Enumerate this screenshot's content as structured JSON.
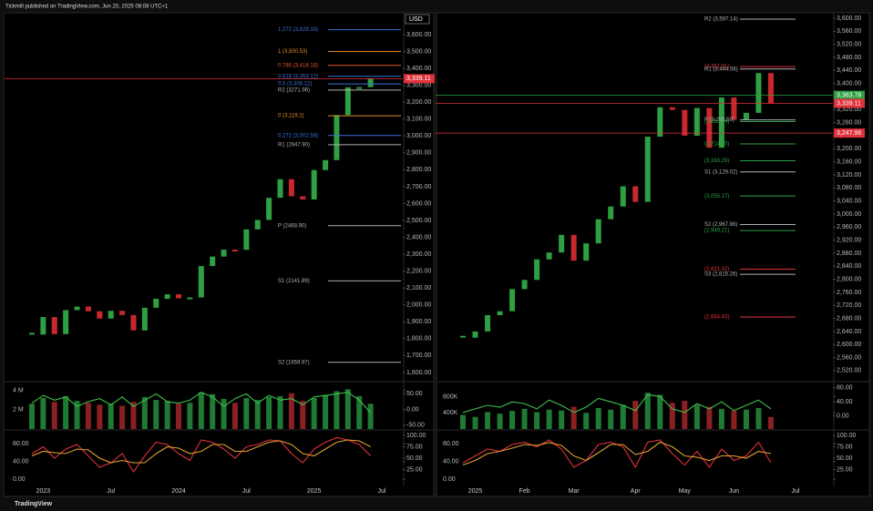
{
  "header": "Tickmill published on TradingView.com, Jun 20, 2025 08:08 UTC+1",
  "footer": "TradingView",
  "chart_data": [
    {
      "type": "line",
      "color": "#2ea043",
      "currency": "USD",
      "values": [
        1824,
        1928,
        1827,
        1969,
        1990,
        1962,
        1919,
        1965,
        1940,
        1849,
        1983,
        2036,
        2063,
        2039,
        2044,
        2230,
        2286,
        2327,
        2326,
        2447,
        2503,
        2634,
        2744,
        2643,
        2624,
        2798,
        2857,
        3124,
        3288,
        3289,
        3339,
        null
      ],
      "ylim": [
        1551,
        3724
      ],
      "yticks": [
        {
          "value": 1600,
          "label": "1,600.00"
        },
        {
          "value": 1700,
          "label": "1,700.00"
        },
        {
          "value": 1800,
          "label": "1,800.00"
        },
        {
          "value": 1900,
          "label": "1,900.00"
        },
        {
          "value": 2000,
          "label": "2,000.00"
        },
        {
          "value": 2100,
          "label": "2,100.00"
        },
        {
          "value": 2200,
          "label": "2,200.00"
        },
        {
          "value": 2300,
          "label": "2,300.00"
        },
        {
          "value": 2400,
          "label": "2,400.00"
        },
        {
          "value": 2500,
          "label": "2,500.00"
        },
        {
          "value": 2600,
          "label": "2,600.00"
        },
        {
          "value": 2700,
          "label": "2,700.00"
        },
        {
          "value": 2800,
          "label": "2,800.00"
        },
        {
          "value": 2900,
          "label": "2,900.00"
        },
        {
          "value": 3000,
          "label": "3,000.00"
        },
        {
          "value": 3100,
          "label": "3,100.00"
        },
        {
          "value": 3200,
          "label": "3,200.00"
        },
        {
          "value": 3300,
          "label": "3,300.00"
        },
        {
          "value": 3400,
          "label": "3,400.00"
        },
        {
          "value": 3500,
          "label": "3,500.00"
        },
        {
          "value": 3600,
          "label": "3,600.00"
        }
      ],
      "levels": [
        {
          "label": "1.272 (3,629.18)",
          "value": 3629.18,
          "color": "#3a6fd8"
        },
        {
          "label": "1 (3,500.53)",
          "value": 3500.53,
          "color": "#e08a2a"
        },
        {
          "label": "0.786 (3,418.18)",
          "value": 3418.18,
          "color": "#e0552a"
        },
        {
          "label": "0.618 (3,353.12)",
          "value": 3353.12,
          "color": "#3a6fd8"
        },
        {
          "label": "0.5 (3,308.12)",
          "value": 3308.12,
          "color": "#3a6fd8"
        },
        {
          "label": "R2 (3271.96)",
          "value": 3271.96,
          "color": "#b0b0b0"
        },
        {
          "label": "0 (3,119.2)",
          "value": 3119.2,
          "color": "#e08a2a"
        },
        {
          "label": "0.272 (3,002.58)",
          "value": 3002.58,
          "color": "#3a6fd8"
        },
        {
          "label": "R1 (2947.90)",
          "value": 2947.9,
          "color": "#b0b0b0"
        },
        {
          "label": "P (2468.90)",
          "value": 2468.9,
          "color": "#b0b0b0"
        },
        {
          "label": "S1 (2141.89)",
          "value": 2141.89,
          "color": "#b0b0b0"
        },
        {
          "label": "S2 (1659.97)",
          "value": 1659.97,
          "color": "#b0b0b0"
        }
      ],
      "price_tags": [
        {
          "value": 3339.11,
          "label": "3,339.11",
          "color": "#e0313a"
        }
      ]
    },
    {
      "type": "bar",
      "color": "#1f7a34",
      "down_color": "#8a1f24",
      "values": [
        2600000,
        3200000,
        2800000,
        3400000,
        2900000,
        2700000,
        2500000,
        2600000,
        2400000,
        2800000,
        3300000,
        3000000,
        2900000,
        2600000,
        2700000,
        3800000,
        3600000,
        3100000,
        2700000,
        3200000,
        3000000,
        3300000,
        3400000,
        3700000,
        2900000,
        3200000,
        3500000,
        3900000,
        4100000,
        3400000,
        2600000,
        null
      ],
      "ylim": [
        0,
        4700000
      ],
      "yticks": [
        {
          "value": 4000000,
          "label": "4 M"
        },
        {
          "value": 2000000,
          "label": "2 M"
        }
      ],
      "y2lim": [
        -62,
        83
      ],
      "y2ticks": [
        {
          "value": 50,
          "label": "50.00"
        },
        {
          "value": 0,
          "label": "0.00"
        },
        {
          "value": -50,
          "label": "-50.00"
        }
      ],
      "series": [
        {
          "color": "#3fbf4a",
          "axis": "y2",
          "values": [
            20,
            45,
            30,
            40,
            10,
            25,
            35,
            15,
            40,
            10,
            30,
            50,
            25,
            20,
            30,
            55,
            40,
            10,
            35,
            50,
            20,
            45,
            30,
            35,
            15,
            40,
            45,
            50,
            55,
            30,
            -10,
            null
          ]
        }
      ]
    },
    {
      "type": "line",
      "categories": [
        null,
        "2023",
        null,
        null,
        null,
        null,
        null,
        "Jul",
        null,
        null,
        null,
        null,
        null,
        "2024",
        null,
        null,
        null,
        null,
        null,
        "Jul",
        null,
        null,
        null,
        null,
        null,
        "2025",
        null,
        null,
        null,
        null,
        null,
        "Jul"
      ],
      "ylim": [
        -12,
        107
      ],
      "yticks": [
        {
          "value": 80,
          "label": "80.00"
        },
        {
          "value": 40,
          "label": "40.00"
        },
        {
          "value": 0,
          "label": "0.00"
        }
      ],
      "y2lim": [
        -8,
        108
      ],
      "y2ticks": [
        {
          "value": 100,
          "label": "100.00"
        },
        {
          "value": 75,
          "label": "75.00"
        },
        {
          "value": 50,
          "label": "50.00"
        },
        {
          "value": 25,
          "label": "25.00"
        }
      ],
      "series": [
        {
          "color": "#e0313a",
          "axis": "y2",
          "values": [
            60,
            75,
            50,
            70,
            80,
            55,
            30,
            40,
            60,
            20,
            55,
            85,
            80,
            60,
            45,
            90,
            85,
            70,
            50,
            75,
            80,
            90,
            88,
            60,
            40,
            70,
            85,
            95,
            90,
            80,
            55,
            null
          ]
        },
        {
          "color": "#e0a030",
          "axis": "y2",
          "values": [
            55,
            65,
            62,
            60,
            70,
            68,
            50,
            40,
            45,
            40,
            40,
            60,
            75,
            72,
            60,
            65,
            80,
            80,
            65,
            65,
            75,
            85,
            88,
            80,
            60,
            55,
            70,
            85,
            90,
            88,
            75,
            null
          ]
        }
      ]
    },
    {
      "type": "line",
      "color": "#2ea043",
      "values": [
        2621,
        2640,
        2690,
        2702,
        2770,
        2798,
        2861,
        2882,
        2936,
        2857,
        2910,
        2984,
        3023,
        3085,
        3037,
        3237,
        3327,
        3319,
        3240,
        3325,
        3203,
        3357,
        3289,
        3310,
        3432,
        3339,
        null,
        null
      ],
      "ylim": [
        2489,
        3614
      ],
      "yticks": [
        {
          "value": 2520,
          "label": "2,520.00"
        },
        {
          "value": 2560,
          "label": "2,560.00"
        },
        {
          "value": 2600,
          "label": "2,600.00"
        },
        {
          "value": 2640,
          "label": "2,640.00"
        },
        {
          "value": 2680,
          "label": "2,680.00"
        },
        {
          "value": 2720,
          "label": "2,720.00"
        },
        {
          "value": 2760,
          "label": "2,760.00"
        },
        {
          "value": 2800,
          "label": "2,800.00"
        },
        {
          "value": 2840,
          "label": "2,840.00"
        },
        {
          "value": 2880,
          "label": "2,880.00"
        },
        {
          "value": 2920,
          "label": "2,920.00"
        },
        {
          "value": 2960,
          "label": "2,960.00"
        },
        {
          "value": 3000,
          "label": "3,000.00"
        },
        {
          "value": 3040,
          "label": "3,040.00"
        },
        {
          "value": 3080,
          "label": "3,080.00"
        },
        {
          "value": 3120,
          "label": "3,120.00"
        },
        {
          "value": 3160,
          "label": "3,160.00"
        },
        {
          "value": 3200,
          "label": "3,200.00"
        },
        {
          "value": 3240,
          "label": "3,240.00"
        },
        {
          "value": 3280,
          "label": "3,280.00"
        },
        {
          "value": 3320,
          "label": "3,320.00"
        },
        {
          "value": 3360,
          "label": "3,360.00"
        },
        {
          "value": 3400,
          "label": "3,400.00"
        },
        {
          "value": 3440,
          "label": "3,440.00"
        },
        {
          "value": 3480,
          "label": "3,480.00"
        },
        {
          "value": 3520,
          "label": "3,520.00"
        },
        {
          "value": 3560,
          "label": "3,560.00"
        },
        {
          "value": 3600,
          "label": "3,600.00"
        }
      ],
      "levels": [
        {
          "label": "R2 (3,597.14)",
          "value": 3597.14,
          "color": "#b0b0b0"
        },
        {
          "label": "(3,451.91)",
          "value": 3451.91,
          "color": "#e0313a"
        },
        {
          "label": "R1 (3,444.56)",
          "value": 3444.56,
          "color": "#b0b0b0"
        },
        {
          "label": "P (3,288.59)",
          "value": 3288.59,
          "color": "#b0b0b0"
        },
        {
          "label": "(3,283.04)",
          "value": 3283.04,
          "color": "#2ea043"
        },
        {
          "label": "(3,214.70)",
          "value": 3214.7,
          "color": "#2ea043"
        },
        {
          "label": "(3,163.29)",
          "value": 3163.29,
          "color": "#2ea043"
        },
        {
          "label": "S1 (3,129.02)",
          "value": 3129.02,
          "color": "#b0b0b0"
        },
        {
          "label": "(3,055.17)",
          "value": 3055.17,
          "color": "#2ea043"
        },
        {
          "label": "S2 (2,967.86)",
          "value": 2967.86,
          "color": "#b0b0b0"
        },
        {
          "label": "(2,949.21)",
          "value": 2949.21,
          "color": "#2ea043"
        },
        {
          "label": "(2,831.02)",
          "value": 2831.02,
          "color": "#e0313a"
        },
        {
          "label": "S3 (2,815.26)",
          "value": 2815.26,
          "color": "#b0b0b0"
        },
        {
          "label": "(2,684.43)",
          "value": 2684.43,
          "color": "#e0313a"
        }
      ],
      "price_tags": [
        {
          "value": 3363.78,
          "label": "3,363.78",
          "color": "#2ea043"
        },
        {
          "value": 3339.11,
          "label": "3,339.11",
          "color": "#e0313a"
        },
        {
          "value": 3247.96,
          "label": "3,247.96",
          "color": "#e0313a"
        }
      ]
    },
    {
      "type": "bar",
      "color": "#1f7a34",
      "down_color": "#8a1f24",
      "values": [
        350000,
        300000,
        420000,
        380000,
        450000,
        500000,
        420000,
        480000,
        460000,
        550000,
        400000,
        520000,
        480000,
        600000,
        700000,
        900000,
        850000,
        650000,
        700000,
        600000,
        550000,
        500000,
        450000,
        480000,
        520000,
        300000,
        null,
        null
      ],
      "ylim": [
        0,
        1130000
      ],
      "yticks": [
        {
          "value": 800000,
          "label": "800K"
        },
        {
          "value": 400000,
          "label": "400K"
        }
      ],
      "y2lim": [
        -37,
        92
      ],
      "y2ticks": [
        {
          "value": 80,
          "label": "80.00"
        },
        {
          "value": 40,
          "label": "40.00"
        },
        {
          "value": 0,
          "label": "0.00"
        }
      ],
      "series": [
        {
          "color": "#3fbf4a",
          "axis": "y2",
          "values": [
            10,
            20,
            30,
            25,
            40,
            35,
            20,
            45,
            30,
            10,
            25,
            50,
            40,
            30,
            15,
            60,
            55,
            20,
            10,
            35,
            20,
            40,
            15,
            30,
            45,
            20,
            null,
            null
          ]
        }
      ]
    },
    {
      "type": "line",
      "categories": [
        null,
        "2025",
        null,
        null,
        null,
        "Feb",
        null,
        null,
        null,
        "Mar",
        null,
        null,
        null,
        null,
        "Apr",
        null,
        null,
        null,
        "May",
        null,
        null,
        null,
        "Jun",
        null,
        null,
        null,
        null,
        "Jul"
      ],
      "ylim": [
        -12,
        107
      ],
      "yticks": [
        {
          "value": 80,
          "label": "80.00"
        },
        {
          "value": 40,
          "label": "40.00"
        },
        {
          "value": 0,
          "label": "0.00"
        }
      ],
      "y2lim": [
        -8,
        108
      ],
      "y2ticks": [
        {
          "value": 100,
          "label": "100.00"
        },
        {
          "value": 75,
          "label": "75.00"
        },
        {
          "value": 50,
          "label": "50.00"
        },
        {
          "value": 25,
          "label": "25.00"
        }
      ],
      "series": [
        {
          "color": "#e0313a",
          "axis": "y2",
          "values": [
            40,
            55,
            70,
            65,
            80,
            85,
            75,
            90,
            70,
            30,
            45,
            80,
            85,
            75,
            30,
            85,
            90,
            60,
            35,
            65,
            30,
            70,
            45,
            55,
            85,
            40,
            null,
            null
          ]
        },
        {
          "color": "#e0a030",
          "axis": "y2",
          "values": [
            35,
            45,
            60,
            65,
            72,
            80,
            78,
            84,
            78,
            55,
            45,
            62,
            80,
            80,
            58,
            65,
            85,
            75,
            55,
            52,
            45,
            55,
            55,
            50,
            65,
            60,
            null,
            null
          ]
        }
      ]
    }
  ]
}
